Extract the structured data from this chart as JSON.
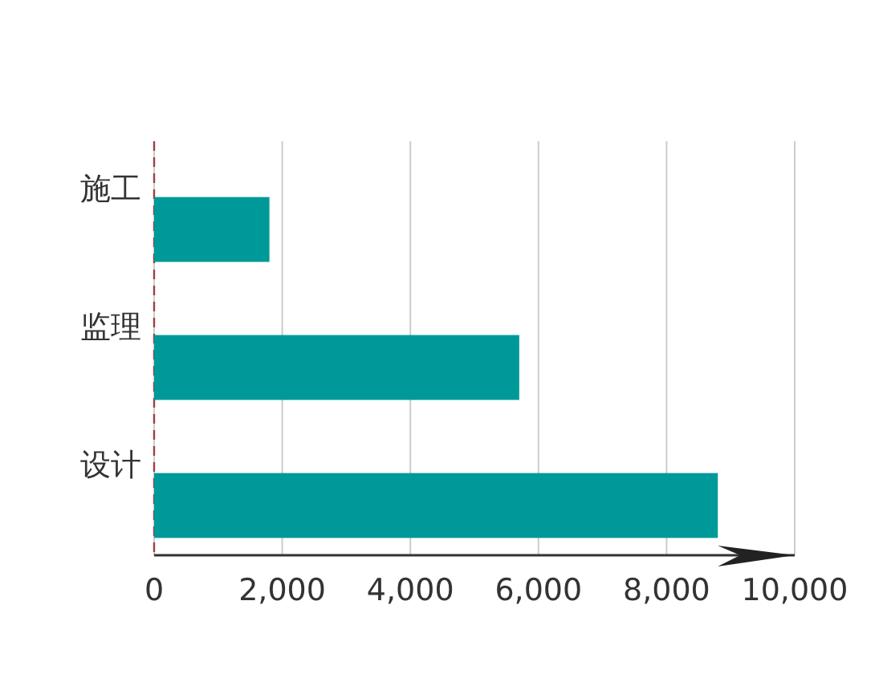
{
  "chart_data": {
    "type": "bar",
    "orientation": "horizontal",
    "categories": [
      "施工",
      "监理",
      "设计"
    ],
    "values": [
      1800,
      5700,
      8800
    ],
    "color": "#009999",
    "xlim": [
      0,
      10000
    ],
    "xticks": [
      {
        "value": 0,
        "label": "0"
      },
      {
        "value": 2000,
        "label": "2,000"
      },
      {
        "value": 4000,
        "label": "4,000"
      },
      {
        "value": 6000,
        "label": "6,000"
      },
      {
        "value": 8000,
        "label": "8,000"
      },
      {
        "value": 10000,
        "label": "10,000"
      }
    ],
    "grid": "x",
    "ref_lines": [
      {
        "axis": "x",
        "value": 0,
        "color": "#a04040",
        "line_style": "dashed"
      }
    ]
  }
}
